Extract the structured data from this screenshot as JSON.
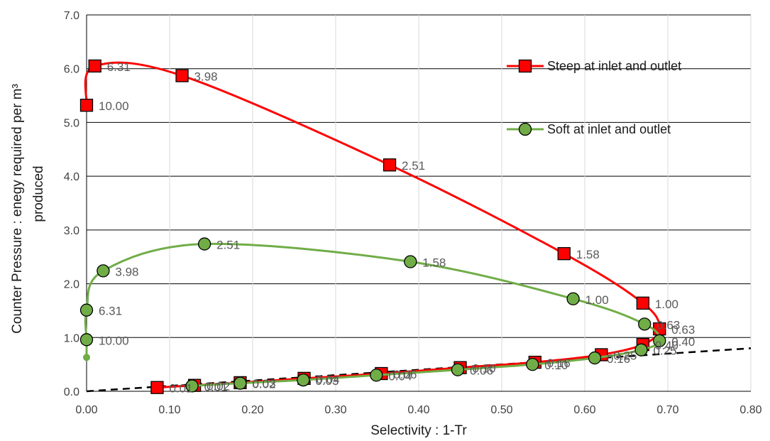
{
  "chart_data": {
    "type": "line",
    "xlabel": "Selectivity : 1-Tr",
    "ylabel": [
      "Counter Pressure : enegy required per m³",
      "produced"
    ],
    "xlim": [
      0,
      0.8
    ],
    "ylim": [
      0,
      7
    ],
    "x_ticks": [
      "0.00",
      "0.10",
      "0.20",
      "0.30",
      "0.40",
      "0.50",
      "0.60",
      "0.70",
      "0.80"
    ],
    "y_ticks": [
      "0.0",
      "1.0",
      "2.0",
      "3.0",
      "4.0",
      "5.0",
      "6.0",
      "7.0"
    ],
    "grid": "horizontal",
    "legend_position": "top-right",
    "series": [
      {
        "name": "Steep at inlet and outlet",
        "color": "#ff0000",
        "marker": "square",
        "x": [
          0.0,
          0.01,
          0.115,
          0.365,
          0.575,
          0.67,
          0.69,
          0.67,
          0.62,
          0.54,
          0.45,
          0.355,
          0.262,
          0.185,
          0.13,
          0.085
        ],
        "y": [
          5.32,
          6.05,
          5.87,
          4.21,
          2.56,
          1.64,
          1.16,
          0.87,
          0.68,
          0.54,
          0.44,
          0.33,
          0.24,
          0.16,
          0.11,
          0.07
        ],
        "labels": [
          "10.00",
          "6.31",
          "3.98",
          "2.51",
          "1.58",
          "1.00",
          "0.63",
          "0.40",
          "0.25",
          "0.16",
          "0.10",
          "0.06",
          "0.04",
          "0.03",
          "0.02",
          "0.01"
        ]
      },
      {
        "name": "Soft at inlet and outlet",
        "color": "#70ad47",
        "marker": "circle",
        "x": [
          0.0,
          0.0,
          0.02,
          0.142,
          0.39,
          0.586,
          0.672,
          0.69,
          0.668,
          0.612,
          0.537,
          0.447,
          0.349,
          0.261,
          0.185,
          0.127
        ],
        "y": [
          0.96,
          1.51,
          2.24,
          2.74,
          2.41,
          1.72,
          1.25,
          0.94,
          0.77,
          0.62,
          0.5,
          0.4,
          0.3,
          0.21,
          0.15,
          0.1
        ],
        "labels": [
          "10.00",
          "6.31",
          "3.98",
          "2.51",
          "1.58",
          "1.00",
          "0.63",
          "0.40",
          "0.25",
          "0.16",
          "0.10",
          "0.06",
          "0.04",
          "0.03",
          "0.02",
          "0.01"
        ]
      }
    ],
    "reference_line": {
      "style": "dashed",
      "color": "#000000",
      "x": [
        0,
        0.8
      ],
      "y": [
        0,
        0.8
      ]
    }
  }
}
